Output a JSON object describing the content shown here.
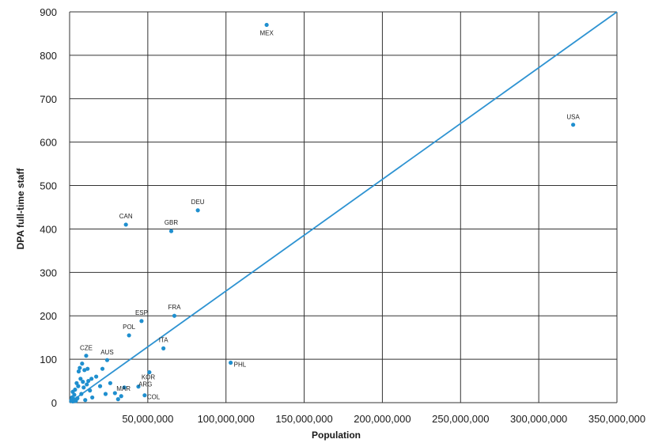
{
  "chart_data": {
    "type": "scatter",
    "title": "",
    "xlabel": "Population",
    "ylabel": "DPA full-time staff",
    "xlim": [
      0,
      350000000
    ],
    "ylim": [
      0,
      900
    ],
    "x_ticks": [
      50000000,
      100000000,
      150000000,
      200000000,
      250000000,
      300000000,
      350000000
    ],
    "x_tick_labels": [
      "50,000,000",
      "100,000,000",
      "150,000,000",
      "200,000,000",
      "250,000,000",
      "300,000,000",
      "350,000,000"
    ],
    "y_ticks": [
      0,
      100,
      200,
      300,
      400,
      500,
      600,
      700,
      800,
      900
    ],
    "y_tick_labels": [
      "0",
      "100",
      "200",
      "300",
      "400",
      "500",
      "600",
      "700",
      "800",
      "900"
    ],
    "grid": true,
    "colors": {
      "point": "#1f8fcf",
      "line": "#2e93d2",
      "grid": "#333333"
    },
    "trendline": {
      "x": [
        0,
        350000000
      ],
      "y": [
        0,
        900
      ]
    },
    "labeled_points": [
      {
        "label": "MEX",
        "x": 126000000,
        "y": 870
      },
      {
        "label": "USA",
        "x": 322000000,
        "y": 640
      },
      {
        "label": "DEU",
        "x": 82000000,
        "y": 443
      },
      {
        "label": "CAN",
        "x": 36000000,
        "y": 410
      },
      {
        "label": "GBR",
        "x": 65000000,
        "y": 395
      },
      {
        "label": "FRA",
        "x": 67000000,
        "y": 200
      },
      {
        "label": "ESP",
        "x": 46000000,
        "y": 188
      },
      {
        "label": "POL",
        "x": 38000000,
        "y": 155
      },
      {
        "label": "ITA",
        "x": 60000000,
        "y": 125
      },
      {
        "label": "CZE",
        "x": 10600000,
        "y": 108
      },
      {
        "label": "AUS",
        "x": 24000000,
        "y": 98
      },
      {
        "label": "PHL",
        "x": 103000000,
        "y": 92
      },
      {
        "label": "KOR",
        "x": 51000000,
        "y": 70
      },
      {
        "label": "MAR",
        "x": 35000000,
        "y": 35
      },
      {
        "label": "ARG",
        "x": 44000000,
        "y": 37
      },
      {
        "label": "COL",
        "x": 48000000,
        "y": 17
      }
    ],
    "unlabeled_points": [
      {
        "x": 1000000,
        "y": 5
      },
      {
        "x": 1500000,
        "y": 12
      },
      {
        "x": 2000000,
        "y": 25
      },
      {
        "x": 2100000,
        "y": 3
      },
      {
        "x": 2800000,
        "y": 8
      },
      {
        "x": 3000000,
        "y": 18
      },
      {
        "x": 3500000,
        "y": 30
      },
      {
        "x": 4000000,
        "y": 4
      },
      {
        "x": 4500000,
        "y": 45
      },
      {
        "x": 5000000,
        "y": 10
      },
      {
        "x": 5500000,
        "y": 38
      },
      {
        "x": 5800000,
        "y": 72
      },
      {
        "x": 6500000,
        "y": 80
      },
      {
        "x": 7000000,
        "y": 55
      },
      {
        "x": 7500000,
        "y": 20
      },
      {
        "x": 8000000,
        "y": 90
      },
      {
        "x": 8500000,
        "y": 48
      },
      {
        "x": 9000000,
        "y": 35
      },
      {
        "x": 9500000,
        "y": 75
      },
      {
        "x": 10000000,
        "y": 6
      },
      {
        "x": 11000000,
        "y": 42
      },
      {
        "x": 11500000,
        "y": 78
      },
      {
        "x": 12000000,
        "y": 50
      },
      {
        "x": 13000000,
        "y": 28
      },
      {
        "x": 14000000,
        "y": 55
      },
      {
        "x": 14500000,
        "y": 12
      },
      {
        "x": 17000000,
        "y": 60
      },
      {
        "x": 19500000,
        "y": 38
      },
      {
        "x": 21000000,
        "y": 78
      },
      {
        "x": 23000000,
        "y": 20
      },
      {
        "x": 26000000,
        "y": 45
      },
      {
        "x": 29000000,
        "y": 22
      },
      {
        "x": 31000000,
        "y": 8
      },
      {
        "x": 33000000,
        "y": 15
      }
    ]
  }
}
